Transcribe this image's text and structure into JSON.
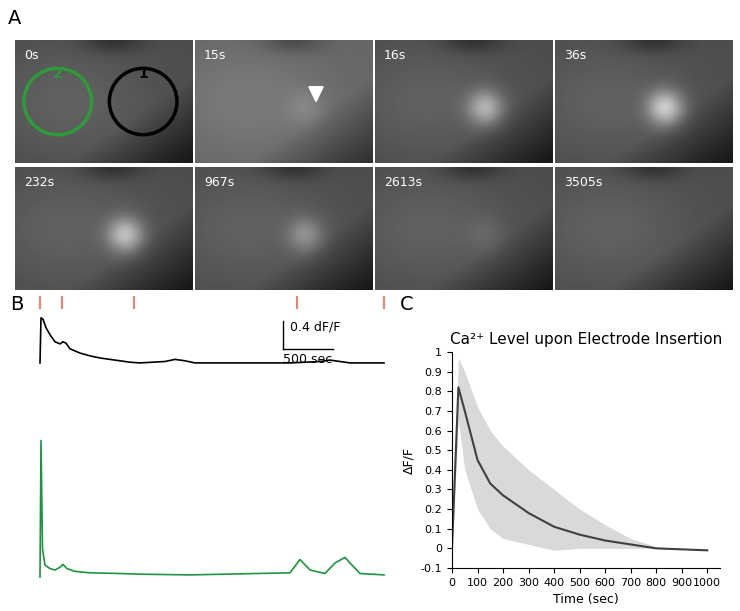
{
  "panel_labels": [
    "A",
    "B",
    "C"
  ],
  "image_panel": {
    "frame_labels": [
      "0s",
      "15s",
      "16s",
      "36s",
      "232s",
      "967s",
      "2613s",
      "3505s"
    ],
    "rois": [
      {
        "label": "2",
        "color": "#2e9b3a"
      },
      {
        "label": "1",
        "color": "#000000"
      }
    ]
  },
  "chart_data": [
    {
      "type": "line",
      "tick_labels": false,
      "color": "#000000",
      "xlim": [
        -100,
        3550
      ],
      "ylim": [
        -0.2,
        0.95
      ],
      "x": [
        0,
        10,
        30,
        60,
        100,
        150,
        200,
        230,
        260,
        300,
        400,
        500,
        600,
        700,
        800,
        900,
        1000,
        1250,
        1350,
        1450,
        1550,
        2500,
        2800,
        2900,
        3000,
        3100,
        3440
      ],
      "values": [
        0,
        0.64,
        0.62,
        0.5,
        0.4,
        0.3,
        0.27,
        0.3,
        0.28,
        0.2,
        0.14,
        0.1,
        0.07,
        0.05,
        0.03,
        0.01,
        0,
        0.02,
        0.05,
        0.03,
        0,
        0,
        0.02,
        0.04,
        0.02,
        0,
        0
      ],
      "events": [
        0,
        220,
        940,
        2570,
        3440
      ],
      "event_color": "#f08070",
      "scale_bar": {
        "x": 500,
        "x_label": "500 sec",
        "y": 0.4,
        "y_label": "0.4 dF/F"
      }
    },
    {
      "type": "line",
      "tick_labels": false,
      "color": "#1a9641",
      "xlim": [
        -100,
        3550
      ],
      "ylim": [
        -0.2,
        2.1
      ],
      "x": [
        0,
        10,
        25,
        50,
        100,
        150,
        200,
        230,
        270,
        350,
        500,
        800,
        1000,
        1500,
        2500,
        2600,
        2700,
        2850,
        2950,
        3050,
        3100,
        3200,
        3440
      ],
      "values": [
        0,
        1.95,
        0.4,
        0.17,
        0.12,
        0.1,
        0.14,
        0.18,
        0.12,
        0.08,
        0.06,
        0.05,
        0.04,
        0.03,
        0.06,
        0.25,
        0.1,
        0.05,
        0.2,
        0.28,
        0.2,
        0.05,
        0.03
      ]
    },
    {
      "type": "line",
      "title": "Ca²⁺ Level upon Electrode Insertion",
      "xlabel": "Time (sec)",
      "ylabel": "ΔF/F",
      "color": "#404040",
      "xlim": [
        0,
        1050
      ],
      "ylim": [
        -0.1,
        1
      ],
      "xticks": [
        0,
        100,
        200,
        300,
        400,
        500,
        600,
        700,
        800,
        900,
        1000
      ],
      "yticks": [
        -0.1,
        0,
        0.1,
        0.2,
        0.3,
        0.4,
        0.5,
        0.6,
        0.7,
        0.8,
        0.9,
        1
      ],
      "x": [
        0,
        25,
        50,
        100,
        150,
        200,
        300,
        400,
        500,
        600,
        700,
        800,
        900,
        1000
      ],
      "values": [
        0,
        0.82,
        0.7,
        0.45,
        0.33,
        0.27,
        0.18,
        0.11,
        0.07,
        0.04,
        0.02,
        0.0,
        -0.005,
        -0.01
      ],
      "band_upper": [
        0,
        0.97,
        0.9,
        0.72,
        0.6,
        0.52,
        0.4,
        0.3,
        0.2,
        0.12,
        0.05,
        0.01,
        -0.005,
        -0.01
      ],
      "band_lower": [
        0,
        0.65,
        0.4,
        0.2,
        0.1,
        0.05,
        0.02,
        -0.01,
        0,
        0,
        0,
        0,
        -0.005,
        -0.01
      ]
    }
  ]
}
